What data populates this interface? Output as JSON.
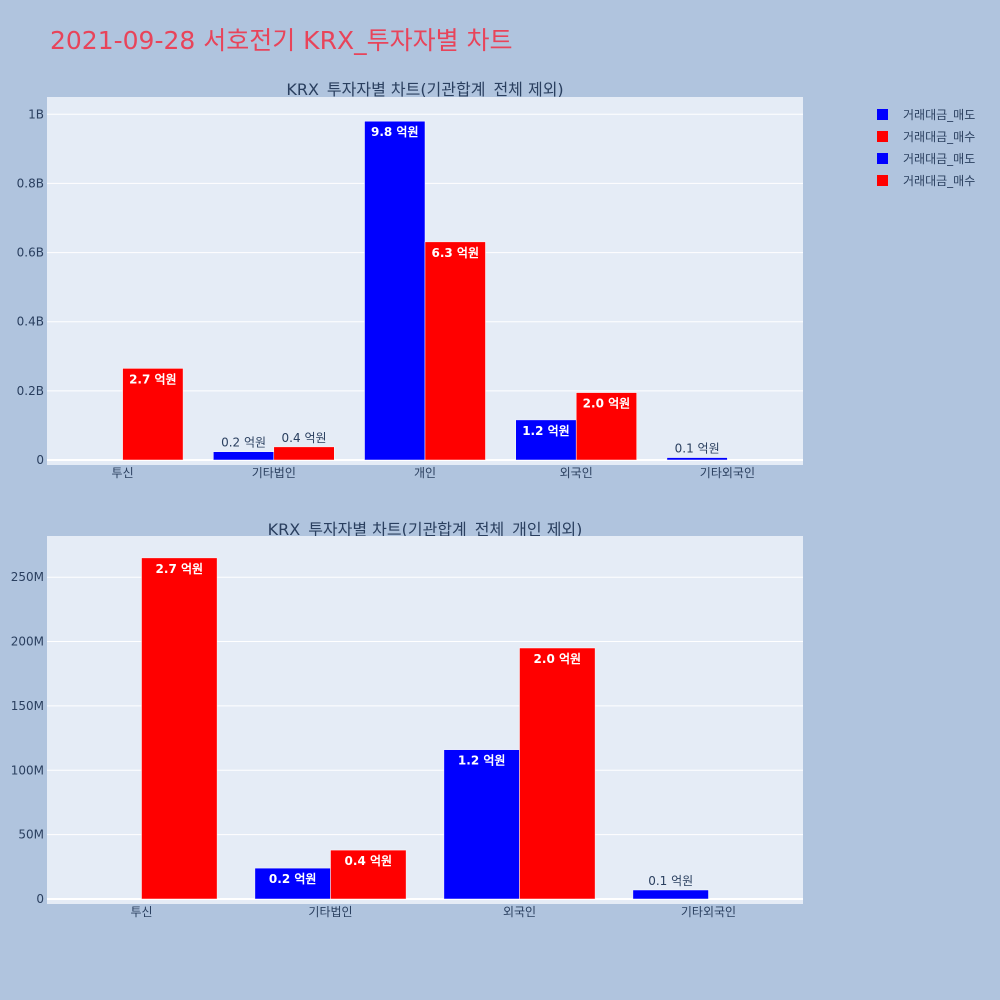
{
  "page": {
    "title": "2021-09-28 서호전기 KRX_투자자별 차트",
    "title_color": "#e8445a",
    "background": "#b0c4de",
    "plot_background": "#e5ecf6"
  },
  "legend": {
    "placement": "top-right",
    "entries": [
      {
        "label": "거래대금_매도",
        "color": "#0000ff"
      },
      {
        "label": "거래대금_매수",
        "color": "#ff0000"
      },
      {
        "label": "거래대금_매도",
        "color": "#0000ff"
      },
      {
        "label": "거래대금_매수",
        "color": "#ff0000"
      }
    ]
  },
  "chart_data": [
    {
      "type": "bar",
      "title": "KRX_투자자별 차트(기관합계_전체 제외)",
      "categories": [
        "투신",
        "기타법인",
        "개인",
        "외국인",
        "기타외국인"
      ],
      "ylim": [
        0,
        1.05
      ],
      "unit_note": "values in billions (B)",
      "yticks": [
        {
          "value": 0,
          "label": "0"
        },
        {
          "value": 0.2,
          "label": "0.2B"
        },
        {
          "value": 0.4,
          "label": "0.4B"
        },
        {
          "value": 0.6,
          "label": "0.6B"
        },
        {
          "value": 0.8,
          "label": "0.8B"
        },
        {
          "value": 1.0,
          "label": "1B"
        }
      ],
      "grid": true,
      "series": [
        {
          "name": "거래대금_매도",
          "color": "#0000ff",
          "values": [
            0,
            0.024,
            0.98,
            0.116,
            0.007
          ],
          "labels": [
            "",
            "0.2 억원",
            "9.8 억원",
            "1.2 억원",
            "0.1 억원"
          ]
        },
        {
          "name": "거래대금_매수",
          "color": "#ff0000",
          "values": [
            0.265,
            0.038,
            0.631,
            0.195,
            0
          ],
          "labels": [
            "2.7 억원",
            "0.4 억원",
            "6.3 억원",
            "2.0 억원",
            ""
          ]
        }
      ]
    },
    {
      "type": "bar",
      "title": "KRX_투자자별 차트(기관합계_전체_개인 제외)",
      "categories": [
        "투신",
        "기타법인",
        "외국인",
        "기타외국인"
      ],
      "ylim": [
        0,
        282
      ],
      "unit_note": "values in millions (M)",
      "yticks": [
        {
          "value": 0,
          "label": "0"
        },
        {
          "value": 50,
          "label": "50M"
        },
        {
          "value": 100,
          "label": "100M"
        },
        {
          "value": 150,
          "label": "150M"
        },
        {
          "value": 200,
          "label": "200M"
        },
        {
          "value": 250,
          "label": "250M"
        }
      ],
      "grid": true,
      "series": [
        {
          "name": "거래대금_매도",
          "color": "#0000ff",
          "values": [
            0,
            24,
            116,
            7
          ],
          "labels": [
            "",
            "0.2 억원",
            "1.2 억원",
            "0.1 억원"
          ]
        },
        {
          "name": "거래대금_매수",
          "color": "#ff0000",
          "values": [
            265,
            38,
            195,
            0
          ],
          "labels": [
            "2.7 억원",
            "0.4 억원",
            "2.0 억원",
            ""
          ]
        }
      ]
    }
  ]
}
